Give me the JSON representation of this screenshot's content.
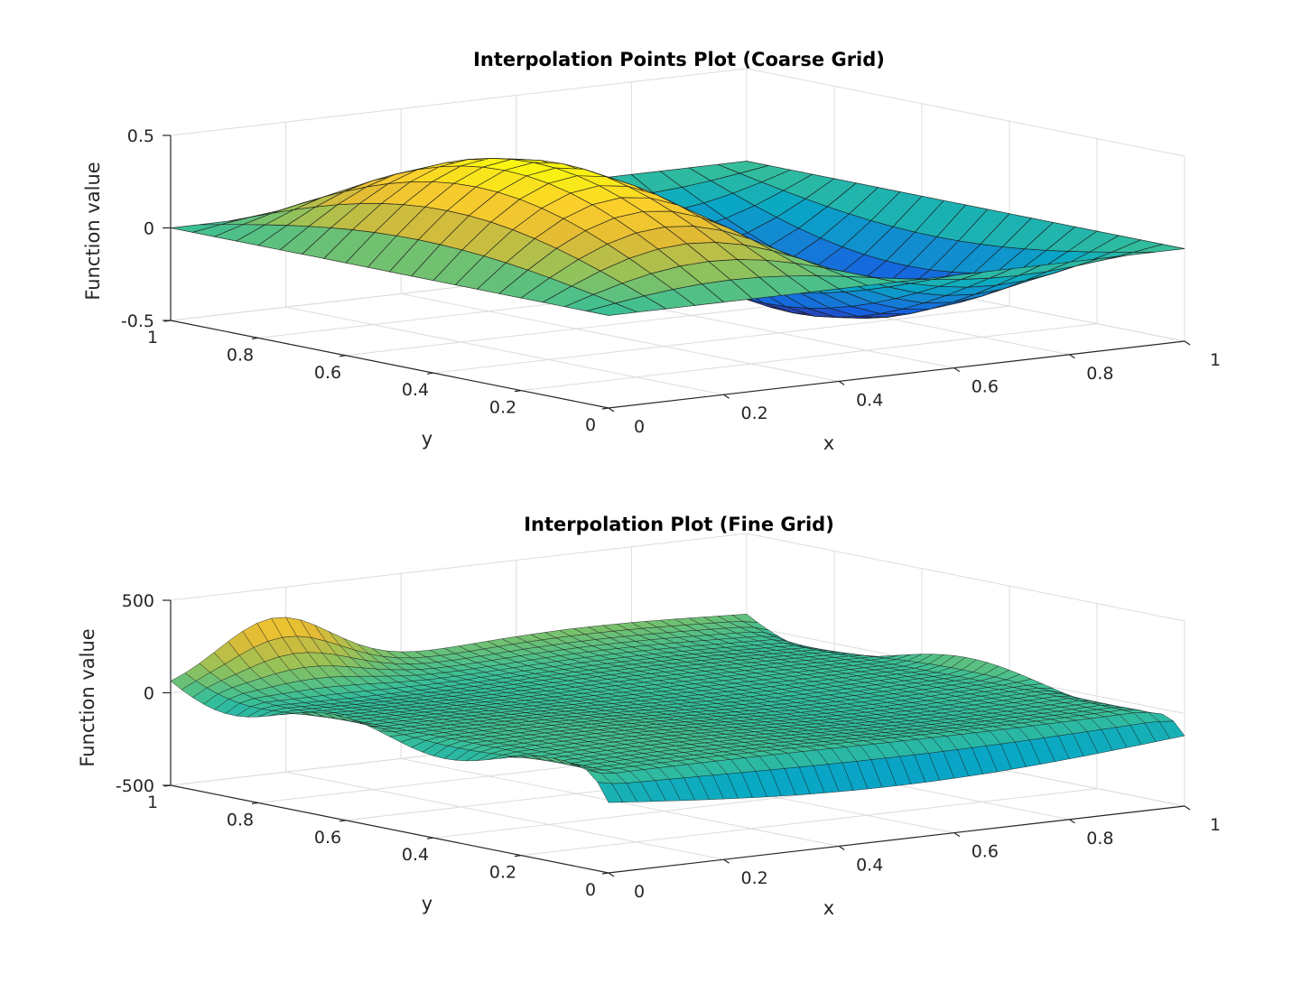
{
  "chart_data": [
    {
      "type": "surface",
      "title": "Interpolation Points Plot (Coarse Grid)",
      "xlabel": "x",
      "ylabel": "y",
      "zlabel": "Function value",
      "xlim": [
        0,
        1
      ],
      "ylim": [
        0,
        1
      ],
      "zlim": [
        -0.5,
        0.5
      ],
      "xticks": [
        "0",
        "0.2",
        "0.4",
        "0.6",
        "0.8",
        "1"
      ],
      "yticks": [
        "0",
        "0.2",
        "0.4",
        "0.6",
        "0.8",
        "1"
      ],
      "zticks": [
        "-0.5",
        "0",
        "0.5"
      ],
      "grid": true,
      "colormap": "parula",
      "grid_size": 21,
      "function": "z = 0.5 * sin(2*pi*x) * sin(pi*y)",
      "peak_value": 0.5,
      "trough_value": -0.5
    },
    {
      "type": "surface",
      "title": "Interpolation Plot (Fine Grid)",
      "xlabel": "x",
      "ylabel": "y",
      "zlabel": "Function value",
      "xlim": [
        0,
        1
      ],
      "ylim": [
        0,
        1
      ],
      "zlim": [
        -500,
        500
      ],
      "xticks": [
        "0",
        "0.2",
        "0.4",
        "0.6",
        "0.8",
        "1"
      ],
      "yticks": [
        "0",
        "0.2",
        "0.4",
        "0.6",
        "0.8",
        "1"
      ],
      "zticks": [
        "-500",
        "0",
        "500"
      ],
      "grid": true,
      "colormap": "parula",
      "grid_size": 41,
      "description": "nearly flat surface near 0 with oscillating edge artifacts",
      "back_edge_peak": 420,
      "front_edge_min": -240
    }
  ]
}
